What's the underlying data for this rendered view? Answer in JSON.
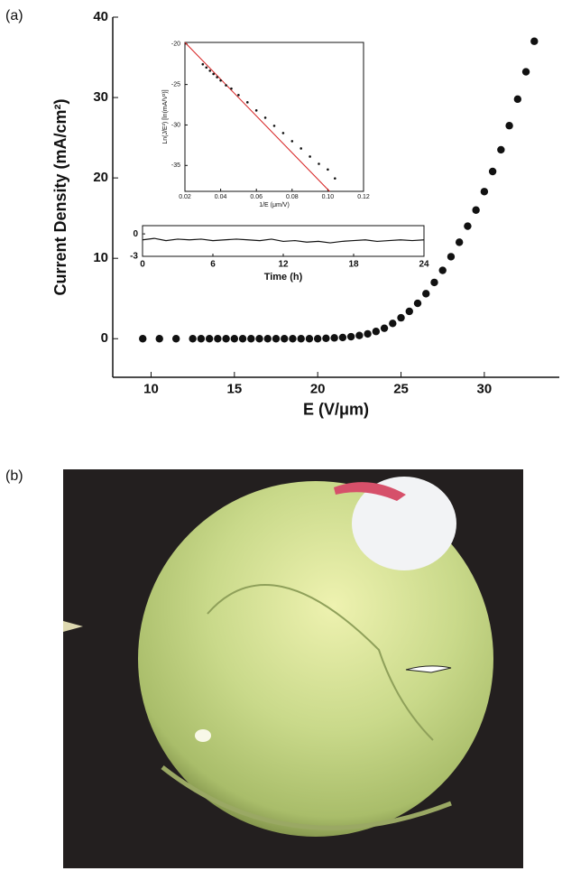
{
  "panel_labels": [
    "(a)",
    "(b)"
  ],
  "chart_data": [
    {
      "type": "scatter",
      "xlabel": "E (V/μm)",
      "ylabel": "Current Density (mA/cm²)",
      "color": "#111111",
      "x": [
        9.5,
        10.5,
        11.5,
        12.5,
        13,
        13.5,
        14,
        14.5,
        15,
        15.5,
        16,
        16.5,
        17,
        17.5,
        18,
        18.5,
        19,
        19.5,
        20,
        20.5,
        21,
        21.5,
        22,
        22.5,
        23,
        23.5,
        24,
        24.5,
        25,
        25.5,
        26,
        26.5,
        27,
        27.5,
        28,
        28.5,
        29,
        29.5,
        30,
        30.5,
        31,
        31.5,
        32,
        32.5,
        33
      ],
      "values": [
        0,
        0,
        0,
        0,
        0,
        0,
        0,
        0,
        0,
        0,
        0,
        0,
        0,
        0,
        0,
        0,
        0,
        0,
        0,
        0.05,
        0.1,
        0.15,
        0.25,
        0.4,
        0.6,
        0.9,
        1.3,
        1.9,
        2.6,
        3.4,
        4.4,
        5.6,
        7,
        8.5,
        10.2,
        12,
        14,
        16,
        18.3,
        20.8,
        23.5,
        26.5,
        29.8,
        33.2,
        37
      ],
      "xlim": [
        7.7,
        34.5
      ],
      "ylim": [
        -4.8,
        40
      ],
      "xticks": [
        10,
        15,
        20,
        25,
        30
      ],
      "yticks": [
        0,
        10,
        20,
        30,
        40
      ]
    },
    {
      "type": "scatter",
      "xlabel": "1/E (μm/V)",
      "ylabel": "Ln(J/E²) [ln(mA/V²)]",
      "color": "#111111",
      "x": [
        0.03,
        0.032,
        0.034,
        0.036,
        0.038,
        0.04,
        0.043,
        0.046,
        0.05,
        0.055,
        0.06,
        0.065,
        0.07,
        0.075,
        0.08,
        0.085,
        0.09,
        0.095,
        0.1,
        0.104
      ],
      "values": [
        -22.5,
        -22.9,
        -23.3,
        -23.7,
        -24.1,
        -24.5,
        -25.1,
        -25.5,
        -26.3,
        -27.2,
        -28.2,
        -29.1,
        -30.1,
        -31.0,
        -32.0,
        -32.9,
        -33.9,
        -34.8,
        -35.5,
        -36.6
      ],
      "fit_line": {
        "color": "#d62020",
        "x": [
          0.02,
          0.101
        ],
        "y": [
          -19.8,
          -38.2
        ]
      },
      "xlim": [
        0.02,
        0.12
      ],
      "ylim": [
        -38.2,
        -19.8
      ],
      "xticks": [
        0.02,
        0.04,
        0.06,
        0.08,
        {
          "value": 0.1,
          "label": "0.10"
        },
        0.12
      ],
      "yticks": [
        -20,
        -25,
        -30,
        -35
      ]
    },
    {
      "type": "line",
      "xlabel": "Time (h)",
      "color": "#111111",
      "x": [
        0,
        1,
        2,
        3,
        4,
        5,
        6,
        7,
        8,
        9,
        10,
        11,
        12,
        13,
        14,
        15,
        16,
        17,
        18,
        19,
        20,
        21,
        22,
        23,
        24
      ],
      "values": [
        -0.8,
        -0.6,
        -0.9,
        -0.7,
        -0.8,
        -0.7,
        -0.9,
        -0.8,
        -0.7,
        -0.8,
        -0.9,
        -0.7,
        -1.0,
        -0.9,
        -1.1,
        -1.0,
        -1.2,
        -1.0,
        -0.9,
        -0.8,
        -1.0,
        -0.9,
        -0.8,
        -0.9,
        -0.8
      ],
      "xlim": [
        0,
        24
      ],
      "ylim": [
        -3,
        1.1
      ],
      "xticks": [
        0,
        6,
        12,
        18,
        24
      ],
      "yticks": [
        0,
        -3
      ]
    }
  ]
}
